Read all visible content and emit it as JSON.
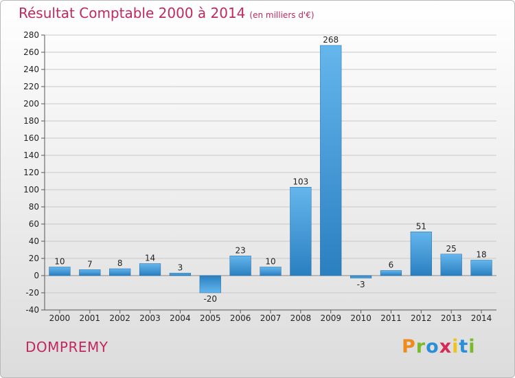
{
  "header": {
    "title": "Résultat Comptable 2000 à 2014",
    "unit": "(en milliers d'€)"
  },
  "footer": {
    "town": "DOMPREMY",
    "logo_text": "Proxiti"
  },
  "colors": {
    "accent": "#c0285f",
    "bar_top": "#62b3ea",
    "bar_bottom": "#2a7fc0",
    "grid": "#c8c8c8"
  },
  "chart_data": {
    "type": "bar",
    "title": "Résultat Comptable 2000 à 2014",
    "subtitle": "(en milliers d'€)",
    "categories": [
      "2000",
      "2001",
      "2002",
      "2003",
      "2004",
      "2005",
      "2006",
      "2007",
      "2008",
      "2009",
      "2010",
      "2011",
      "2012",
      "2013",
      "2014"
    ],
    "values": [
      10,
      7,
      8,
      14,
      3,
      -20,
      23,
      10,
      103,
      268,
      -3,
      6,
      51,
      25,
      18
    ],
    "ylim": [
      -40,
      280
    ],
    "yticks": [
      -40,
      -20,
      0,
      20,
      40,
      60,
      80,
      100,
      120,
      140,
      160,
      180,
      200,
      220,
      240,
      260,
      280
    ],
    "grid": true,
    "xlabel": "",
    "ylabel": ""
  }
}
